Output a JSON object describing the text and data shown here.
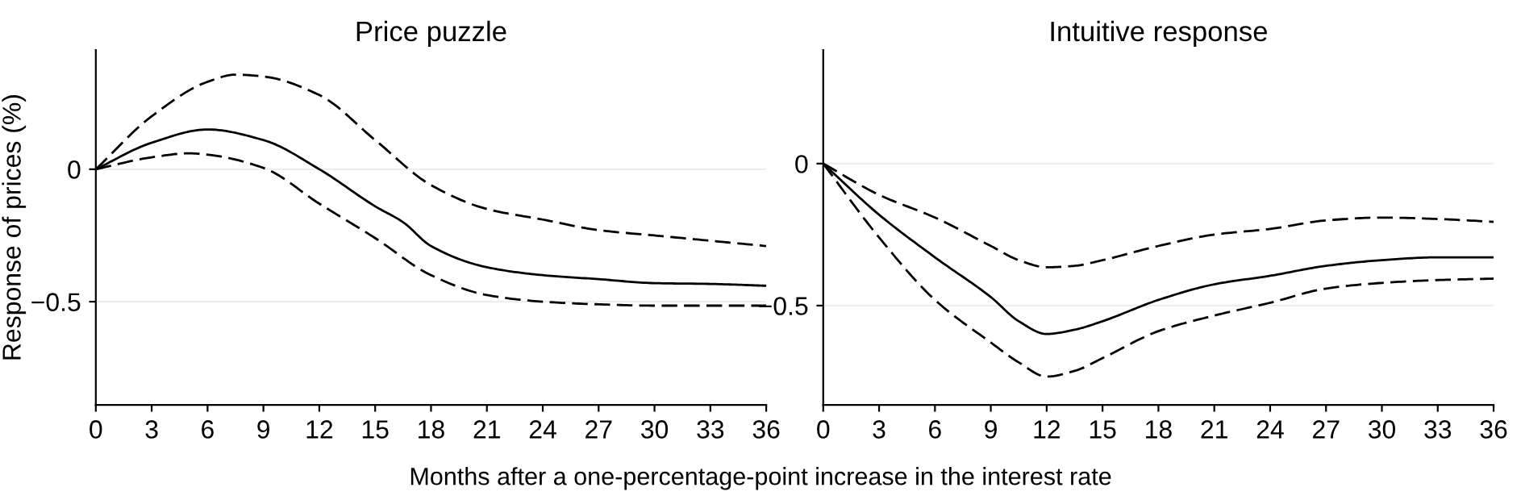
{
  "chart_data": [
    {
      "type": "line",
      "title": "Price puzzle",
      "ylabel": "Response of prices (%)",
      "xlabel": "Months after a one-percentage-point increase in the interest rate",
      "xlim": [
        0,
        36
      ],
      "xticks": [
        0,
        3,
        6,
        9,
        12,
        15,
        18,
        21,
        24,
        27,
        30,
        33,
        36
      ],
      "ylim": [
        -0.89,
        0.45
      ],
      "yticks": [
        0,
        -0.5
      ],
      "grid": "y",
      "series": [
        {
          "color": "#000000",
          "line_style": "solid",
          "x": [
            0,
            3,
            6,
            9,
            12,
            15,
            16.5,
            18,
            21,
            24,
            27,
            30,
            33,
            36
          ],
          "values": [
            0,
            0.1,
            0.15,
            0.11,
            0.0,
            -0.14,
            -0.2,
            -0.29,
            -0.37,
            -0.4,
            -0.415,
            -0.43,
            -0.433,
            -0.44
          ]
        },
        {
          "color": "#000000",
          "line_style": "dashed",
          "x": [
            0,
            3,
            6,
            7.5,
            9,
            12,
            15,
            18,
            21,
            24,
            27,
            30,
            33,
            36
          ],
          "values": [
            0,
            0.2,
            0.33,
            0.357,
            0.35,
            0.28,
            0.11,
            -0.06,
            -0.15,
            -0.19,
            -0.23,
            -0.25,
            -0.27,
            -0.29
          ]
        },
        {
          "color": "#000000",
          "line_style": "dashed",
          "x": [
            0,
            3,
            5,
            6,
            9,
            12,
            15,
            18,
            21,
            24,
            27,
            30,
            36
          ],
          "values": [
            0,
            0.045,
            0.06,
            0.055,
            0.005,
            -0.13,
            -0.26,
            -0.4,
            -0.475,
            -0.5,
            -0.51,
            -0.515,
            -0.515
          ]
        }
      ]
    },
    {
      "type": "line",
      "title": "Intuitive response",
      "xlim": [
        0,
        36
      ],
      "xticks": [
        0,
        3,
        6,
        9,
        12,
        15,
        18,
        21,
        24,
        27,
        30,
        33,
        36
      ],
      "ylim": [
        -0.85,
        0.4
      ],
      "yticks": [
        0,
        -0.5
      ],
      "grid": "y",
      "series": [
        {
          "color": "#000000",
          "line_style": "solid",
          "x": [
            0,
            3,
            6,
            9,
            10.5,
            12,
            13.5,
            15,
            18,
            21,
            24,
            27,
            30,
            33,
            36
          ],
          "values": [
            0,
            -0.18,
            -0.33,
            -0.47,
            -0.555,
            -0.6,
            -0.585,
            -0.555,
            -0.48,
            -0.425,
            -0.395,
            -0.36,
            -0.34,
            -0.33,
            -0.33
          ]
        },
        {
          "color": "#000000",
          "line_style": "dashed",
          "x": [
            0,
            3,
            6,
            9,
            10.5,
            12,
            13.5,
            15,
            18,
            21,
            24,
            27,
            30,
            33,
            36
          ],
          "values": [
            0,
            -0.11,
            -0.19,
            -0.29,
            -0.34,
            -0.365,
            -0.36,
            -0.34,
            -0.29,
            -0.25,
            -0.23,
            -0.2,
            -0.19,
            -0.195,
            -0.205
          ]
        },
        {
          "color": "#000000",
          "line_style": "dashed",
          "x": [
            0,
            3,
            6,
            9,
            10.5,
            12,
            13.5,
            15,
            18,
            21,
            24,
            27,
            30,
            33,
            36
          ],
          "values": [
            0,
            -0.26,
            -0.48,
            -0.63,
            -0.7,
            -0.75,
            -0.73,
            -0.685,
            -0.59,
            -0.535,
            -0.49,
            -0.44,
            -0.42,
            -0.41,
            -0.405
          ]
        }
      ]
    }
  ]
}
